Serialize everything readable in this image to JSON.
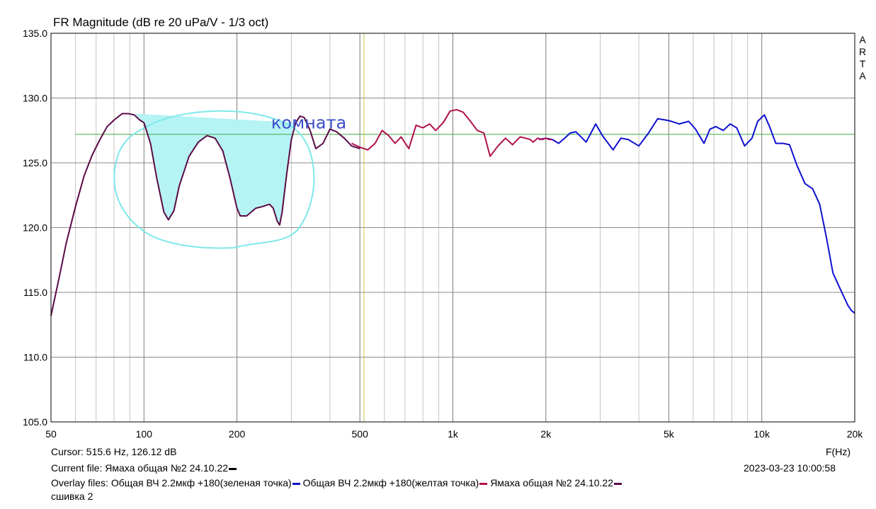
{
  "header": {
    "title": "FR Magnitude (dB re 20 uPa/V - 1/3 oct)",
    "arta_letters": [
      "A",
      "R",
      "T",
      "A"
    ]
  },
  "footer": {
    "cursor": "Cursor: 515.6 Hz, 126.12 dB",
    "x_unit": "F(Hz)",
    "current_file_label": "Current file: Ямаха общая №2 24.10.22",
    "timestamp": "2023-03-23   10:00:58",
    "overlay_label": "Overlay files:",
    "overlay_files": [
      {
        "name": "Общая ВЧ 2.2мкф +180(зеленая точка)",
        "color": "#1010d0"
      },
      {
        "name": "Общая ВЧ 2.2мкф +180(желтая точка)",
        "color": "#b0104c"
      },
      {
        "name": "Ямаха общая №2 24.10.22",
        "color": "#5a0a45"
      }
    ],
    "overlay_continued": "сшивка 2",
    "current_file_color": "#000000"
  },
  "chart_data": {
    "type": "line",
    "title": "FR Magnitude (dB re 20 uPa/V - 1/3 oct)",
    "xlabel": "F(Hz)",
    "ylabel": "",
    "x_scale": "log",
    "xlim": [
      50,
      20000
    ],
    "ylim": [
      105,
      135
    ],
    "grid": true,
    "x_ticks": [
      {
        "v": 50,
        "label": "50"
      },
      {
        "v": 100,
        "label": "100"
      },
      {
        "v": 200,
        "label": "200"
      },
      {
        "v": 500,
        "label": "500"
      },
      {
        "v": 1000,
        "label": "1k"
      },
      {
        "v": 2000,
        "label": "2k"
      },
      {
        "v": 5000,
        "label": "5k"
      },
      {
        "v": 10000,
        "label": "10k"
      },
      {
        "v": 20000,
        "label": "20k"
      }
    ],
    "y_ticks": [
      {
        "v": 105,
        "label": "105.0"
      },
      {
        "v": 110,
        "label": "110.0"
      },
      {
        "v": 115,
        "label": "115.0"
      },
      {
        "v": 120,
        "label": "120.0"
      },
      {
        "v": 125,
        "label": "125.0"
      },
      {
        "v": 130,
        "label": "130.0"
      },
      {
        "v": 135,
        "label": "135.0"
      }
    ],
    "reference_line": {
      "y": 127.2,
      "x_from": 60,
      "x_to": 20000,
      "color": "#3cb043"
    },
    "cursor_marker": {
      "x": 515.6,
      "color": "#c8c84a"
    },
    "annotation": {
      "text": "комната",
      "x": 190,
      "y": 128.1,
      "color": "#3a4ec8",
      "ellipse_color": "#7ee8ea",
      "fill_color": "#b5f3f5"
    },
    "room_fill_points": [
      [
        93,
        128.8
      ],
      [
        100,
        128.1
      ],
      [
        105,
        126.5
      ],
      [
        110,
        123.8
      ],
      [
        116,
        121.2
      ],
      [
        120,
        120.6
      ],
      [
        125,
        121.3
      ],
      [
        130,
        123.2
      ],
      [
        140,
        125.5
      ],
      [
        150,
        126.6
      ],
      [
        160,
        127.1
      ],
      [
        170,
        126.9
      ],
      [
        180,
        125.9
      ],
      [
        190,
        123.8
      ],
      [
        200,
        121.5
      ],
      [
        205,
        120.9
      ],
      [
        215,
        120.9
      ],
      [
        230,
        121.5
      ],
      [
        240,
        121.6
      ],
      [
        255,
        121.8
      ],
      [
        262,
        121.5
      ],
      [
        270,
        120.5
      ],
      [
        275,
        120.2
      ],
      [
        280,
        121.2
      ],
      [
        290,
        124.2
      ],
      [
        300,
        126.8
      ],
      [
        305,
        128.0
      ],
      [
        310,
        128.1
      ]
    ],
    "series": [
      {
        "color": "#1010d0",
        "x": [
          1900,
          2000,
          2100,
          2200,
          2300,
          2400,
          2500,
          2700,
          2900,
          3050,
          3300,
          3500,
          3700,
          4000,
          4300,
          4600,
          4900,
          5100,
          5400,
          5800,
          6100,
          6500,
          6800,
          7100,
          7500,
          7900,
          8300,
          8800,
          9300,
          9700,
          10200,
          10600,
          11100,
          11700,
          12300,
          13000,
          13800,
          14600,
          15400,
          16200,
          17000,
          18000,
          19000,
          19500,
          20000
        ],
        "y": [
          126.8,
          126.9,
          126.8,
          126.5,
          126.9,
          127.3,
          127.4,
          126.6,
          128.0,
          127.1,
          126.0,
          126.9,
          126.8,
          126.3,
          127.3,
          128.4,
          128.3,
          128.2,
          128.0,
          128.2,
          127.6,
          126.5,
          127.6,
          127.8,
          127.5,
          128.0,
          127.7,
          126.3,
          126.9,
          128.2,
          128.7,
          127.8,
          126.5,
          126.5,
          126.4,
          124.8,
          123.4,
          123.0,
          121.8,
          119.2,
          116.5,
          115.2,
          114.0,
          113.6,
          113.4
        ]
      },
      {
        "color": "#b0104c",
        "x": [
          470,
          500,
          530,
          560,
          590,
          620,
          650,
          680,
          720,
          760,
          800,
          840,
          880,
          930,
          980,
          1030,
          1080,
          1140,
          1200,
          1260,
          1320,
          1400,
          1480,
          1560,
          1650,
          1720,
          1780,
          1820,
          1880,
          1950,
          2000,
          2050,
          2100
        ],
        "y": [
          126.5,
          126.2,
          126.0,
          126.5,
          127.5,
          127.1,
          126.5,
          127.0,
          126.1,
          127.9,
          127.7,
          128.0,
          127.5,
          128.1,
          129.0,
          129.1,
          128.9,
          128.2,
          127.5,
          127.3,
          125.5,
          126.3,
          126.9,
          126.4,
          127.0,
          126.9,
          126.8,
          126.6,
          126.9,
          126.8,
          126.9,
          126.8,
          126.8
        ]
      },
      {
        "color": "#5a0a45",
        "x": [
          50,
          53,
          56,
          60,
          64,
          68,
          72,
          76,
          80,
          85,
          89,
          93,
          97,
          100,
          105,
          110,
          116,
          120,
          125,
          130,
          140,
          150,
          160,
          170,
          180,
          190,
          200,
          205,
          215,
          230,
          240,
          255,
          262,
          270,
          275,
          280,
          290,
          300,
          310,
          320,
          330,
          345,
          360,
          380,
          400,
          420,
          445,
          470,
          500
        ],
        "y": [
          113.2,
          116.0,
          118.8,
          121.6,
          124.0,
          125.6,
          126.8,
          127.8,
          128.3,
          128.8,
          128.8,
          128.7,
          128.3,
          128.1,
          126.5,
          123.8,
          121.2,
          120.6,
          121.3,
          123.2,
          125.5,
          126.6,
          127.1,
          126.9,
          125.9,
          123.8,
          121.5,
          120.9,
          120.9,
          121.5,
          121.6,
          121.8,
          121.5,
          120.5,
          120.2,
          121.2,
          124.2,
          126.8,
          128.1,
          128.6,
          128.5,
          127.5,
          126.1,
          126.5,
          127.6,
          127.4,
          126.9,
          126.3,
          126.1
        ]
      }
    ]
  }
}
